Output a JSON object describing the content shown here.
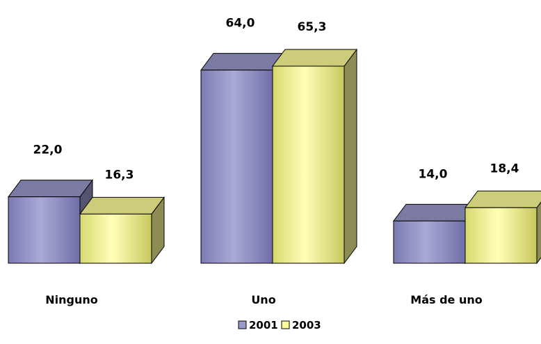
{
  "chart_data": {
    "type": "bar",
    "three_d": true,
    "categories": [
      "Ninguno",
      "Uno",
      "Más de uno"
    ],
    "series": [
      {
        "name": "2001",
        "values": [
          22.0,
          64.0,
          14.0
        ],
        "labels": [
          "22,0",
          "64,0",
          "14,0"
        ],
        "color": "#9999cc"
      },
      {
        "name": "2003",
        "values": [
          16.3,
          65.3,
          18.4
        ],
        "labels": [
          "16,3",
          "65,3",
          "18,4"
        ],
        "color": "#ffff99"
      }
    ],
    "title": "",
    "xlabel": "",
    "ylabel": "",
    "ylim": [
      0,
      65.3
    ],
    "grid": false,
    "legend_position": "bottom"
  }
}
